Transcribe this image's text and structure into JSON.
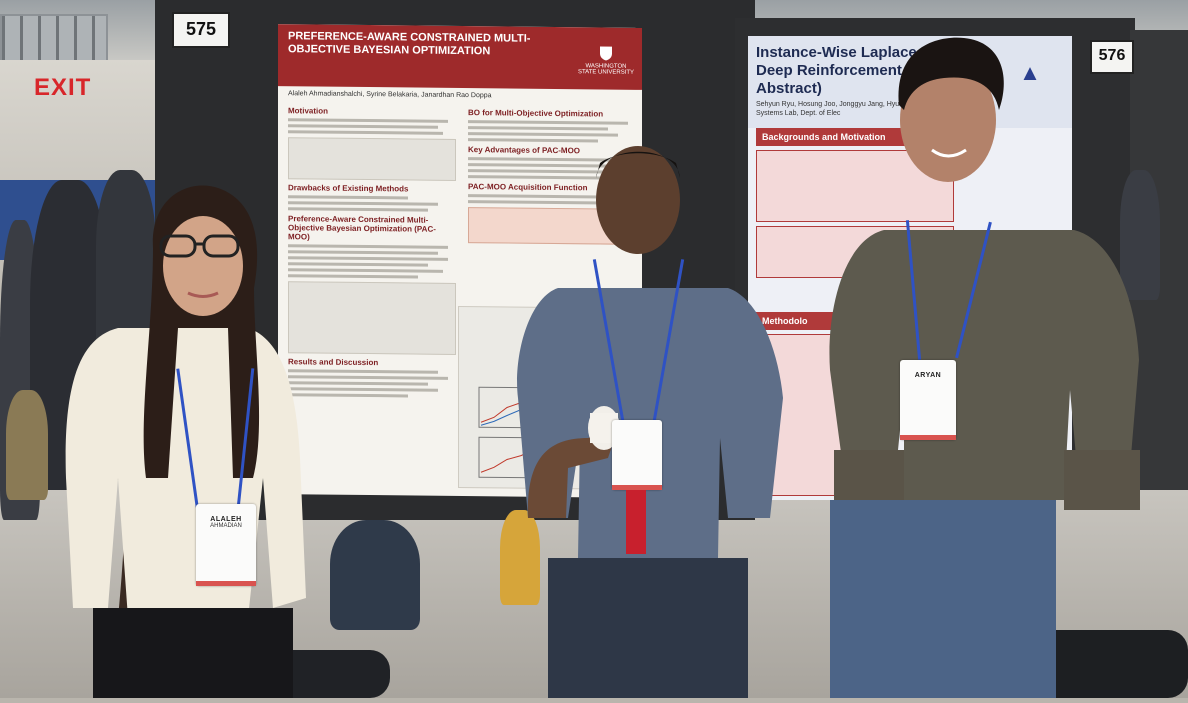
{
  "scene": {
    "exit_sign": "EXIT",
    "booth_left": "575",
    "booth_right": "576"
  },
  "poster_left": {
    "title": "PREFERENCE-AWARE CONSTRAINED MULTI-OBJECTIVE BAYESIAN OPTIMIZATION",
    "institution": "WASHINGTON STATE UNIVERSITY",
    "authors": "Alaleh Ahmadianshalchi, Syrine Belakaria, Janardhan Rao Doppa",
    "sections": {
      "motivation": "Motivation",
      "drawbacks": "Drawbacks of Existing Methods",
      "pac_moo": "Preference-Aware Constrained Multi-Objective Bayesian Optimization (PAC-MOO)",
      "results": "Results and Discussion",
      "bo_moo": "BO for Multi-Objective Optimization",
      "advantages": "Key Advantages of PAC-MOO",
      "acquisition": "PAC-MOO Acquisition Function"
    }
  },
  "poster_right": {
    "title": "Instance-Wise Laplace Mec via Deep Reinforcement (Student Abstract)",
    "authors": "Sehyun Ryu, Hosung Joo, Jonggyu Jang, Hyun Jo Advanced Information Systems Lab, Dept. of Elec",
    "section_background": "Backgrounds and Motivation",
    "section_method": "Methodolo"
  },
  "badges": {
    "left": {
      "name": "ALALEH",
      "surname": "AHMADIAN"
    },
    "right": {
      "name": "ARYAN"
    }
  },
  "colors": {
    "poster_left_header": "#9e2a2b",
    "poster_right_title": "#1e2b52",
    "lanyard": "#2f52c4",
    "exit_sign": "#d8262a"
  }
}
